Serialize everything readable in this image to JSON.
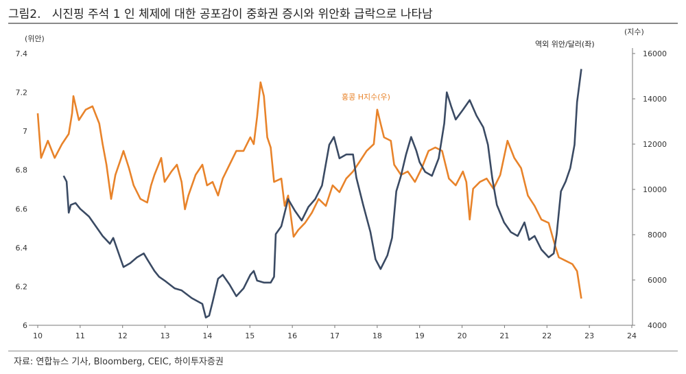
{
  "title": "그림2.   시진핑 주석 1 인 체제에 대한 공포감이 중화권 증시와 위안화 급락으로 나타남",
  "source": "자료: 연합뉴스 기사, Bloomberg, CEIC, 하이투자증권",
  "chart_data": {
    "type": "line",
    "title": "",
    "xlabel": "",
    "y_left_label": "(위안)",
    "y_right_label": "(지수)",
    "xlim": [
      10,
      24
    ],
    "x_ticks": [
      "10",
      "11",
      "12",
      "13",
      "14",
      "15",
      "16",
      "17",
      "18",
      "19",
      "20",
      "21",
      "22",
      "23",
      "24"
    ],
    "y_left_lim": [
      6,
      7.4
    ],
    "y_left_ticks": [
      "6",
      "6.2",
      "6.4",
      "6.6",
      "6.8",
      "7",
      "7.2",
      "7.4"
    ],
    "y_right_lim": [
      4000,
      16000
    ],
    "y_right_ticks": [
      "4000",
      "6000",
      "8000",
      "10000",
      "12000",
      "14000",
      "16000"
    ],
    "grid": false,
    "series": [
      {
        "name": "역외 위안/달러(좌)",
        "axis": "left",
        "color": "#3a4a63",
        "x": [
          10.61,
          10.68,
          10.73,
          10.78,
          10.89,
          11.0,
          11.21,
          11.37,
          11.53,
          11.7,
          11.78,
          11.94,
          12.02,
          12.18,
          12.34,
          12.5,
          12.58,
          12.75,
          12.86,
          12.99,
          13.23,
          13.39,
          13.63,
          13.88,
          13.96,
          14.04,
          14.12,
          14.25,
          14.36,
          14.52,
          14.68,
          14.85,
          15.01,
          15.09,
          15.17,
          15.33,
          15.49,
          15.57,
          15.61,
          15.74,
          15.9,
          16.06,
          16.22,
          16.38,
          16.54,
          16.7,
          16.87,
          16.98,
          17.11,
          17.27,
          17.43,
          17.51,
          17.67,
          17.84,
          17.96,
          18.08,
          18.24,
          18.35,
          18.45,
          18.56,
          18.68,
          18.8,
          18.92,
          19.0,
          19.13,
          19.29,
          19.45,
          19.58,
          19.64,
          19.74,
          19.85,
          20.02,
          20.18,
          20.34,
          20.5,
          20.61,
          20.71,
          20.82,
          20.99,
          21.15,
          21.31,
          21.47,
          21.58,
          21.71,
          21.87,
          22.04,
          22.16,
          22.23,
          22.33,
          22.44,
          22.55,
          22.65,
          22.71,
          22.81
        ],
        "y": [
          6.77,
          6.74,
          6.58,
          6.62,
          6.63,
          6.6,
          6.56,
          6.51,
          6.46,
          6.42,
          6.45,
          6.35,
          6.3,
          6.32,
          6.35,
          6.37,
          6.34,
          6.28,
          6.25,
          6.23,
          6.19,
          6.18,
          6.14,
          6.11,
          6.04,
          6.05,
          6.12,
          6.24,
          6.26,
          6.21,
          6.15,
          6.19,
          6.26,
          6.28,
          6.23,
          6.22,
          6.22,
          6.25,
          6.47,
          6.51,
          6.65,
          6.59,
          6.54,
          6.61,
          6.65,
          6.72,
          6.93,
          6.97,
          6.86,
          6.88,
          6.88,
          6.76,
          6.62,
          6.48,
          6.34,
          6.29,
          6.36,
          6.45,
          6.69,
          6.77,
          6.88,
          6.97,
          6.9,
          6.84,
          6.79,
          6.77,
          6.86,
          7.04,
          7.2,
          7.13,
          7.06,
          7.11,
          7.16,
          7.08,
          7.02,
          6.93,
          6.76,
          6.62,
          6.53,
          6.48,
          6.46,
          6.53,
          6.44,
          6.46,
          6.39,
          6.35,
          6.37,
          6.47,
          6.69,
          6.74,
          6.81,
          6.93,
          7.15,
          7.32
        ]
      },
      {
        "name": "홍콩 H지수(우)",
        "axis": "right",
        "color": "#e8832a",
        "x": [
          10.0,
          10.08,
          10.24,
          10.4,
          10.57,
          10.73,
          10.81,
          10.84,
          10.97,
          11.13,
          11.29,
          11.45,
          11.53,
          11.62,
          11.73,
          11.83,
          11.94,
          12.02,
          12.15,
          12.26,
          12.42,
          12.58,
          12.67,
          12.75,
          12.91,
          12.99,
          13.15,
          13.28,
          13.39,
          13.47,
          13.55,
          13.72,
          13.88,
          13.99,
          14.12,
          14.25,
          14.36,
          14.52,
          14.68,
          14.85,
          15.01,
          15.09,
          15.17,
          15.25,
          15.33,
          15.41,
          15.49,
          15.57,
          15.74,
          15.82,
          15.9,
          16.03,
          16.14,
          16.3,
          16.46,
          16.62,
          16.79,
          16.95,
          17.11,
          17.27,
          17.43,
          17.59,
          17.75,
          17.92,
          18.0,
          18.08,
          18.16,
          18.32,
          18.4,
          18.56,
          18.72,
          18.89,
          19.05,
          19.21,
          19.37,
          19.53,
          19.69,
          19.85,
          20.02,
          20.1,
          20.18,
          20.26,
          20.42,
          20.58,
          20.74,
          20.9,
          21.07,
          21.23,
          21.39,
          21.55,
          21.71,
          21.87,
          22.04,
          22.2,
          22.28,
          22.44,
          22.6,
          22.71,
          22.81
        ],
        "y": [
          13360,
          11390,
          12150,
          11390,
          12000,
          12450,
          13360,
          14120,
          13060,
          13520,
          13670,
          12910,
          12000,
          11090,
          9580,
          10640,
          11240,
          11700,
          10940,
          10180,
          9580,
          9420,
          10180,
          10640,
          11390,
          10330,
          10790,
          11090,
          10330,
          9120,
          9730,
          10640,
          11090,
          10180,
          10330,
          9730,
          10480,
          11090,
          11700,
          11700,
          12300,
          12000,
          13210,
          14730,
          14120,
          12300,
          11850,
          10330,
          10480,
          9270,
          9730,
          7910,
          8210,
          8520,
          8970,
          9580,
          9270,
          10180,
          9880,
          10480,
          10790,
          11240,
          11700,
          12000,
          13520,
          12910,
          12300,
          12150,
          11090,
          10640,
          10790,
          10330,
          10940,
          11700,
          11850,
          11700,
          10480,
          10180,
          10790,
          10330,
          8670,
          10030,
          10330,
          10480,
          10030,
          10640,
          12150,
          11390,
          10940,
          9730,
          9270,
          8670,
          8520,
          7460,
          7000,
          6850,
          6700,
          6390,
          5180
        ]
      }
    ]
  }
}
